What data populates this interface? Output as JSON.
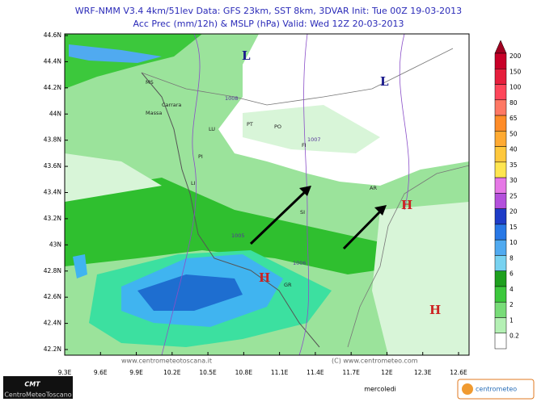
{
  "header": {
    "line1": "WRF-NMM V3.4 4km/51lev   Data: GFS 23km, SST 8km, 3DVAR   Init: Tue 00Z 19-03-2013",
    "line2": "Acc Prec (mm/12h) & MSLP (hPa)   Valid: Wed 12Z 20-03-2013"
  },
  "map": {
    "lat_labels": [
      "44.6N",
      "44.4N",
      "44.2N",
      "44N",
      "43.8N",
      "43.6N",
      "43.4N",
      "43.2N",
      "43N",
      "42.8N",
      "42.6N",
      "42.4N",
      "42.2N"
    ],
    "lon_labels": [
      "9.3E",
      "9.6E",
      "9.9E",
      "10.2E",
      "10.5E",
      "10.8E",
      "11.1E",
      "11.4E",
      "11.7E",
      "12E",
      "12.3E",
      "12.6E"
    ],
    "cities": [
      "MS",
      "Carrara",
      "Massa",
      "LU",
      "PT",
      "PO",
      "FI",
      "PI",
      "LI",
      "AR",
      "SI",
      "GR"
    ],
    "isobars": [
      "1008",
      "1007",
      "1005",
      "1006"
    ],
    "pressure_centers": [
      "L",
      "L",
      "H",
      "H",
      "H"
    ]
  },
  "colorbar": {
    "labels": [
      "200",
      "150",
      "100",
      "80",
      "65",
      "50",
      "40",
      "35",
      "30",
      "25",
      "20",
      "15",
      "10",
      "8",
      "6",
      "4",
      "2",
      "1",
      "0.2"
    ],
    "colors": [
      "#a00020",
      "#c80028",
      "#e61e3c",
      "#ff465a",
      "#ff7864",
      "#ff8c28",
      "#ffaa32",
      "#ffc83c",
      "#ffe650",
      "#e678e6",
      "#b450dc",
      "#1e3cc8",
      "#2878e6",
      "#50aaf0",
      "#78d2f0",
      "#1ea01e",
      "#3cc83c",
      "#78dc78",
      "#b4f0b4",
      "#ffffff"
    ]
  },
  "footer": {
    "website_left": "www.centrometeotoscana.it",
    "website_right": "(C) www.centrometeo.com",
    "day": "mercoledi",
    "logo_left": "CMT",
    "logo_left_sub": "CentroMeteoToscano",
    "logo_right": "centrometeo"
  }
}
